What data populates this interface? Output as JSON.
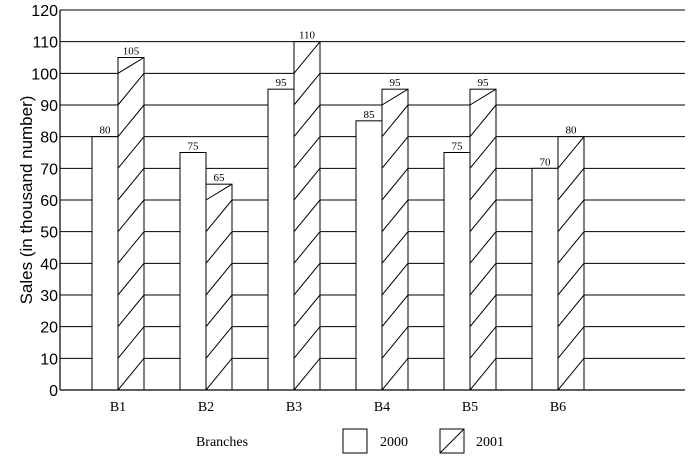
{
  "chart_data": {
    "type": "bar",
    "title": "",
    "xlabel": "Branches",
    "ylabel": "Sales (in thousand number)",
    "categories": [
      "B1",
      "B2",
      "B3",
      "B4",
      "B5",
      "B6"
    ],
    "series": [
      {
        "name": "2000",
        "values": [
          80,
          75,
          95,
          85,
          75,
          70
        ],
        "pattern": "blank"
      },
      {
        "name": "2001",
        "values": [
          105,
          65,
          110,
          95,
          95,
          80
        ],
        "pattern": "hatched-diagonal"
      }
    ],
    "ylim": [
      0,
      120
    ],
    "yticks": [
      0,
      10,
      20,
      30,
      40,
      50,
      60,
      70,
      80,
      90,
      100,
      110,
      120
    ],
    "grid": true,
    "legend_position": "bottom"
  }
}
